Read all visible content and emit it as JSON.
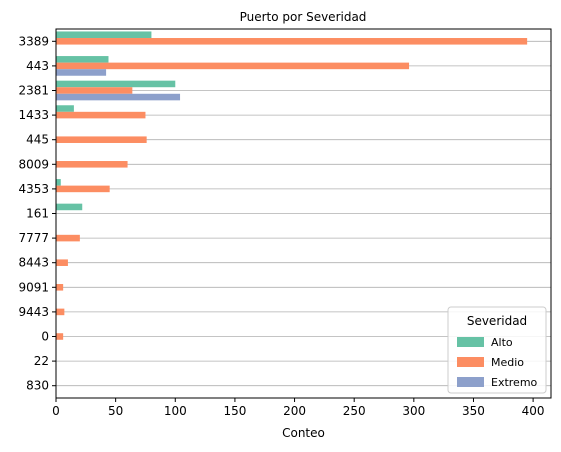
{
  "chart_data": {
    "type": "bar",
    "orientation": "horizontal",
    "title": "Puerto por Severidad",
    "xlabel": "Conteo",
    "ylabel": "",
    "xlim": [
      0,
      415
    ],
    "xticks": [
      0,
      50,
      100,
      150,
      200,
      250,
      300,
      350,
      400
    ],
    "grid": "horizontal lines at categories",
    "legend": {
      "title": "Severidad",
      "placement": "lower-right"
    },
    "categories": [
      "3389",
      "443",
      "2381",
      "1433",
      "445",
      "8009",
      "4353",
      "161",
      "7777",
      "8443",
      "9091",
      "9443",
      "0",
      "22",
      "830"
    ],
    "series": [
      {
        "name": "Alto",
        "color": "#66c2a5",
        "values": [
          80,
          44,
          100,
          15,
          0,
          0,
          4,
          22,
          0,
          0,
          0,
          0,
          0,
          0,
          0
        ]
      },
      {
        "name": "Medio",
        "color": "#fc8d62",
        "values": [
          395,
          296,
          64,
          75,
          76,
          60,
          45,
          0,
          20,
          10,
          6,
          7,
          6,
          0,
          0
        ]
      },
      {
        "name": "Extremo",
        "color": "#8da0cb",
        "values": [
          0,
          42,
          104,
          0,
          0,
          0,
          0,
          0,
          0,
          0,
          0,
          0,
          0,
          0,
          0
        ]
      }
    ]
  }
}
